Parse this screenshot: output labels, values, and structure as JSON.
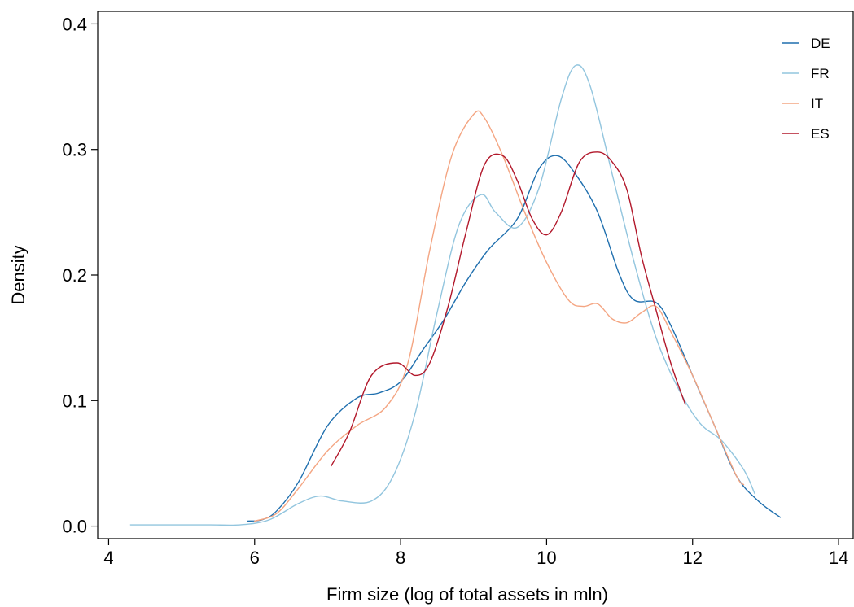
{
  "chart_data": {
    "type": "line",
    "title": "",
    "xlabel": "Firm size (log of total assets in mln)",
    "ylabel": "Density",
    "xlim": [
      3.85,
      14.2
    ],
    "ylim": [
      -0.01,
      0.41
    ],
    "xticks": [
      "4",
      "6",
      "8",
      "10",
      "12",
      "14"
    ],
    "yticks": [
      "0.0",
      "0.1",
      "0.2",
      "0.3",
      "0.4"
    ],
    "grid": false,
    "legend_position": "top-right",
    "series": [
      {
        "name": "DE",
        "color": "#1f6fae",
        "x": [
          5.9,
          6.1,
          6.3,
          6.6,
          7.0,
          7.4,
          7.7,
          8.0,
          8.3,
          8.6,
          8.9,
          9.2,
          9.6,
          9.9,
          10.15,
          10.4,
          10.7,
          11.0,
          11.2,
          11.5,
          11.7,
          12.0,
          12.3,
          12.6,
          12.9,
          13.2
        ],
        "y": [
          0.004,
          0.005,
          0.012,
          0.035,
          0.08,
          0.102,
          0.106,
          0.115,
          0.14,
          0.165,
          0.195,
          0.22,
          0.245,
          0.285,
          0.295,
          0.28,
          0.25,
          0.2,
          0.18,
          0.178,
          0.16,
          0.12,
          0.08,
          0.04,
          0.02,
          0.007
        ]
      },
      {
        "name": "FR",
        "color": "#92c5de",
        "x": [
          4.3,
          4.6,
          5.0,
          5.4,
          5.8,
          6.2,
          6.6,
          6.9,
          7.2,
          7.6,
          7.9,
          8.2,
          8.5,
          8.8,
          9.1,
          9.3,
          9.6,
          9.9,
          10.2,
          10.4,
          10.6,
          10.9,
          11.2,
          11.5,
          11.8,
          12.1,
          12.4,
          12.7,
          12.85
        ],
        "y": [
          0.001,
          0.001,
          0.001,
          0.001,
          0.001,
          0.005,
          0.018,
          0.024,
          0.02,
          0.02,
          0.04,
          0.09,
          0.17,
          0.24,
          0.264,
          0.25,
          0.238,
          0.27,
          0.34,
          0.367,
          0.35,
          0.28,
          0.21,
          0.15,
          0.11,
          0.082,
          0.068,
          0.045,
          0.026
        ]
      },
      {
        "name": "IT",
        "color": "#f4a582",
        "x": [
          6.0,
          6.3,
          6.6,
          7.0,
          7.4,
          7.8,
          8.1,
          8.4,
          8.7,
          9.0,
          9.15,
          9.4,
          9.7,
          10.0,
          10.3,
          10.5,
          10.7,
          10.9,
          11.1,
          11.3,
          11.5,
          11.7,
          12.0,
          12.3,
          12.6,
          12.7
        ],
        "y": [
          0.004,
          0.01,
          0.03,
          0.06,
          0.08,
          0.095,
          0.13,
          0.22,
          0.295,
          0.328,
          0.325,
          0.295,
          0.25,
          0.21,
          0.18,
          0.175,
          0.177,
          0.165,
          0.162,
          0.17,
          0.175,
          0.155,
          0.12,
          0.08,
          0.04,
          0.033
        ]
      },
      {
        "name": "ES",
        "color": "#b2182b",
        "x": [
          7.05,
          7.3,
          7.6,
          7.95,
          8.2,
          8.4,
          8.65,
          8.9,
          9.15,
          9.4,
          9.6,
          9.8,
          10.0,
          10.2,
          10.45,
          10.7,
          10.9,
          11.1,
          11.3,
          11.5,
          11.7,
          11.9
        ],
        "y": [
          0.048,
          0.075,
          0.12,
          0.13,
          0.12,
          0.13,
          0.175,
          0.235,
          0.288,
          0.295,
          0.275,
          0.245,
          0.232,
          0.25,
          0.29,
          0.298,
          0.29,
          0.268,
          0.215,
          0.172,
          0.13,
          0.097
        ]
      }
    ]
  }
}
